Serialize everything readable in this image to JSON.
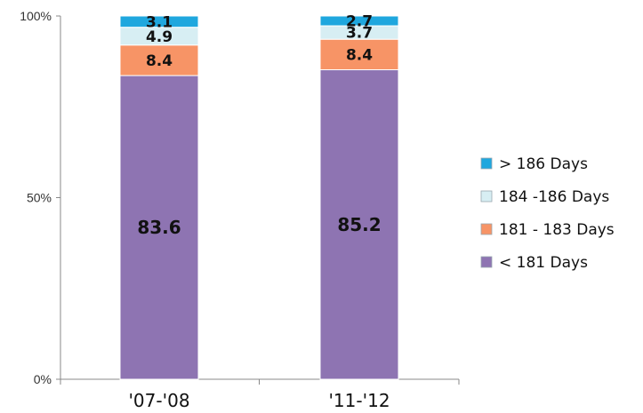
{
  "chart_data": {
    "type": "bar",
    "stacked": true,
    "percent": true,
    "title": "",
    "xlabel": "",
    "ylabel": "",
    "ylim": [
      0,
      100
    ],
    "yticks": [
      "0%",
      "50%",
      "100%"
    ],
    "grid": false,
    "legend": "right",
    "categories": [
      "'07-'08",
      "'11-'12"
    ],
    "series": [
      {
        "name": "< 181 Days",
        "values": [
          83.6,
          85.2
        ],
        "labels": [
          "83.6",
          "85.2"
        ],
        "color": "#8E74B2"
      },
      {
        "name": "181 - 183 Days",
        "values": [
          8.4,
          8.4
        ],
        "labels": [
          "8.4",
          "8.4"
        ],
        "color": "#F79466"
      },
      {
        "name": "184 -186 Days",
        "values": [
          4.9,
          3.7
        ],
        "labels": [
          "4.9",
          "3.7"
        ],
        "color": "#D7EEF3"
      },
      {
        "name": "> 186 Days",
        "values": [
          3.1,
          2.7
        ],
        "labels": [
          "3.1",
          "2.7"
        ],
        "color": "#1FA7DE"
      }
    ]
  }
}
